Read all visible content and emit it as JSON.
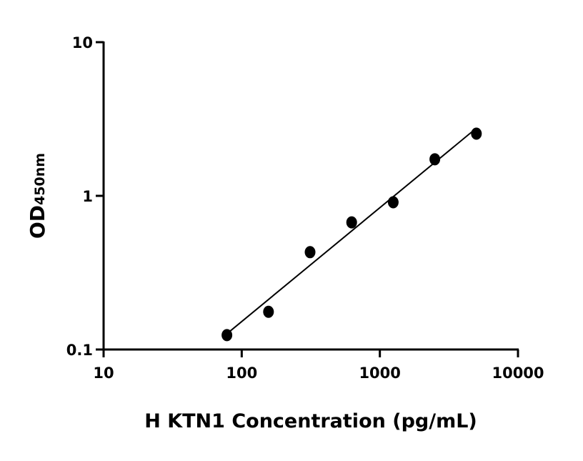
{
  "chart_data": {
    "type": "scatter",
    "title": "",
    "xlabel": "H KTN1 Concentration (pg/mL)",
    "ylabel": "OD",
    "ylabel_subscript": "450nm",
    "xscale": "log",
    "yscale": "log",
    "xlim": [
      10,
      10000
    ],
    "ylim": [
      0.1,
      10
    ],
    "xticks": [
      "10",
      "100",
      "1000",
      "10000"
    ],
    "yticks": [
      "0.1",
      "1",
      "10"
    ],
    "grid": false,
    "legend": "none",
    "marker_color": "#000000",
    "fit_line": "log-log linear fit",
    "series": [
      {
        "x": [
          78.125,
          156.25,
          312.5,
          625,
          1250,
          2500,
          5000
        ],
        "y": [
          0.124,
          0.176,
          0.43,
          0.672,
          0.908,
          1.73,
          2.54
        ]
      }
    ]
  }
}
